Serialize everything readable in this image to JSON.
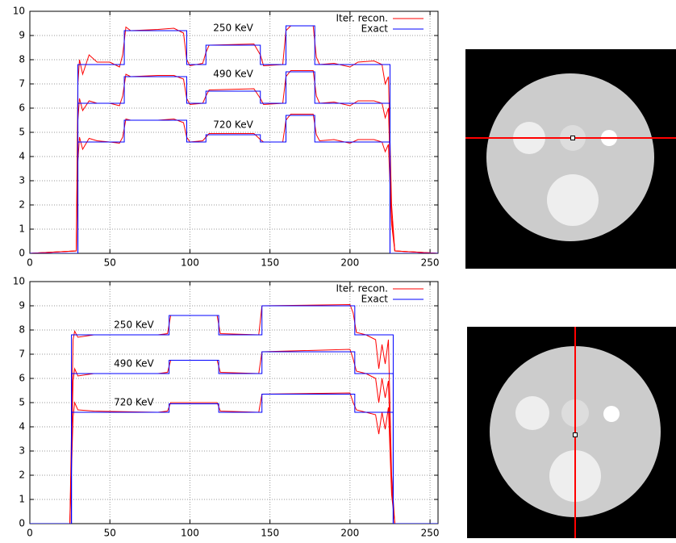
{
  "chart_data": [
    {
      "type": "line",
      "xlim": [
        0,
        255
      ],
      "ylim": [
        0,
        10
      ],
      "xticks": [
        0,
        50,
        100,
        150,
        200,
        250
      ],
      "yticks": [
        0,
        1,
        2,
        3,
        4,
        5,
        6,
        7,
        8,
        9,
        10
      ],
      "grid": true,
      "legend": "top-right",
      "annotations": [
        {
          "text": "250 KeV",
          "x": 127,
          "y": 9.3
        },
        {
          "text": "490 KeV",
          "x": 127,
          "y": 7.4
        },
        {
          "text": "720 KeV",
          "x": 127,
          "y": 5.3
        }
      ],
      "series": [
        {
          "name": "Iter. recon.",
          "color": "#ff0000",
          "lines": [
            {
              "x": [
                0,
                29,
                30,
                31,
                33,
                37,
                42,
                50,
                56,
                58,
                60,
                63,
                80,
                90,
                96,
                98,
                100,
                108,
                110,
                112,
                140,
                144,
                146,
                158,
                160,
                163,
                177,
                179,
                181,
                190,
                200,
                205,
                215,
                220,
                222,
                224,
                226,
                228,
                255
              ],
              "values": [
                0,
                0.1,
                7.0,
                8.0,
                7.4,
                8.2,
                7.9,
                7.9,
                7.7,
                8.2,
                9.35,
                9.2,
                9.25,
                9.3,
                9.1,
                8.0,
                7.75,
                7.85,
                8.3,
                8.6,
                8.65,
                8.2,
                7.75,
                7.8,
                9.2,
                9.4,
                9.4,
                8.1,
                7.8,
                7.85,
                7.7,
                7.9,
                7.95,
                7.8,
                7.0,
                7.3,
                2,
                0.1,
                0
              ]
            },
            {
              "x": [
                0,
                29,
                30,
                31,
                33,
                37,
                42,
                50,
                56,
                58,
                60,
                63,
                80,
                90,
                96,
                98,
                100,
                108,
                110,
                112,
                140,
                144,
                146,
                158,
                160,
                163,
                177,
                179,
                181,
                190,
                200,
                205,
                215,
                220,
                222,
                224,
                226,
                228,
                255
              ],
              "values": [
                0,
                0.1,
                5.5,
                6.4,
                5.9,
                6.3,
                6.2,
                6.2,
                6.1,
                6.5,
                7.4,
                7.3,
                7.35,
                7.35,
                7.2,
                6.4,
                6.15,
                6.2,
                6.5,
                6.75,
                6.8,
                6.4,
                6.15,
                6.2,
                7.3,
                7.55,
                7.55,
                6.5,
                6.2,
                6.25,
                6.1,
                6.3,
                6.3,
                6.2,
                5.6,
                6.0,
                1.5,
                0.1,
                0
              ]
            },
            {
              "x": [
                0,
                29,
                30,
                31,
                33,
                37,
                42,
                50,
                56,
                58,
                60,
                63,
                80,
                90,
                96,
                98,
                100,
                108,
                110,
                112,
                140,
                144,
                146,
                158,
                160,
                163,
                177,
                179,
                181,
                190,
                200,
                205,
                215,
                220,
                222,
                224,
                226,
                228,
                255
              ],
              "values": [
                0,
                0.1,
                3.8,
                4.8,
                4.3,
                4.75,
                4.65,
                4.6,
                4.55,
                4.8,
                5.55,
                5.5,
                5.5,
                5.55,
                5.4,
                4.8,
                4.6,
                4.65,
                4.8,
                4.95,
                4.95,
                4.7,
                4.6,
                4.6,
                5.5,
                5.75,
                5.75,
                4.9,
                4.65,
                4.7,
                4.55,
                4.7,
                4.7,
                4.6,
                4.2,
                4.5,
                1.2,
                0.1,
                0
              ]
            }
          ]
        },
        {
          "name": "Exact",
          "color": "#0000ff",
          "lines": [
            {
              "x": [
                0,
                30,
                30,
                59,
                59,
                98,
                98,
                110,
                110,
                144,
                144,
                160,
                160,
                178,
                178,
                225,
                225,
                255
              ],
              "values": [
                0,
                0,
                7.8,
                7.8,
                9.2,
                9.2,
                7.8,
                7.8,
                8.6,
                8.6,
                7.8,
                7.8,
                9.4,
                9.4,
                7.8,
                7.8,
                0,
                0
              ]
            },
            {
              "x": [
                0,
                30,
                30,
                59,
                59,
                98,
                98,
                110,
                110,
                144,
                144,
                160,
                160,
                178,
                178,
                225,
                225,
                255
              ],
              "values": [
                0,
                0,
                6.2,
                6.2,
                7.3,
                7.3,
                6.2,
                6.2,
                6.7,
                6.7,
                6.2,
                6.2,
                7.5,
                7.5,
                6.2,
                6.2,
                0,
                0
              ]
            },
            {
              "x": [
                0,
                30,
                30,
                59,
                59,
                98,
                98,
                110,
                110,
                144,
                144,
                160,
                160,
                178,
                178,
                225,
                225,
                255
              ],
              "values": [
                0,
                0,
                4.6,
                4.6,
                5.5,
                5.5,
                4.6,
                4.6,
                4.9,
                4.9,
                4.6,
                4.6,
                5.7,
                5.7,
                4.6,
                4.6,
                0,
                0
              ]
            }
          ]
        }
      ]
    },
    {
      "type": "line",
      "xlim": [
        0,
        255
      ],
      "ylim": [
        0,
        10
      ],
      "xticks": [
        0,
        50,
        100,
        150,
        200,
        250
      ],
      "yticks": [
        0,
        1,
        2,
        3,
        4,
        5,
        6,
        7,
        8,
        9,
        10
      ],
      "grid": true,
      "legend": "top-right",
      "annotations": [
        {
          "text": "250 KeV",
          "x": 65,
          "y": 8.2
        },
        {
          "text": "490 KeV",
          "x": 65,
          "y": 6.6
        },
        {
          "text": "720 KeV",
          "x": 65,
          "y": 5.0
        }
      ],
      "series": [
        {
          "name": "Iter. recon.",
          "color": "#ff0000",
          "lines": [
            {
              "x": [
                0,
                25,
                27,
                28,
                30,
                40,
                80,
                86,
                88,
                117,
                119,
                143,
                145,
                200,
                202,
                204,
                210,
                216,
                218,
                220,
                222,
                224,
                226,
                228,
                255
              ],
              "values": [
                0,
                0,
                7.6,
                7.95,
                7.7,
                7.8,
                7.8,
                7.85,
                8.6,
                8.6,
                7.85,
                7.8,
                9.0,
                9.05,
                8.7,
                7.9,
                7.8,
                7.6,
                6.4,
                7.4,
                6.6,
                7.6,
                2,
                0,
                0
              ]
            },
            {
              "x": [
                0,
                25,
                27,
                28,
                30,
                40,
                80,
                86,
                88,
                117,
                119,
                143,
                145,
                200,
                202,
                204,
                210,
                216,
                218,
                220,
                222,
                224,
                226,
                228,
                255
              ],
              "values": [
                0,
                0,
                5.9,
                6.4,
                6.1,
                6.2,
                6.2,
                6.25,
                6.75,
                6.75,
                6.25,
                6.2,
                7.1,
                7.2,
                6.8,
                6.3,
                6.2,
                6.0,
                5.0,
                6.0,
                5.2,
                5.9,
                1.5,
                0,
                0
              ]
            },
            {
              "x": [
                0,
                25,
                27,
                28,
                30,
                40,
                80,
                86,
                88,
                117,
                119,
                143,
                145,
                200,
                202,
                204,
                210,
                216,
                218,
                220,
                222,
                224,
                226,
                228,
                255
              ],
              "values": [
                0,
                0,
                4.4,
                5.0,
                4.7,
                4.65,
                4.6,
                4.65,
                5.0,
                5.0,
                4.65,
                4.6,
                5.35,
                5.4,
                5.0,
                4.7,
                4.6,
                4.5,
                3.7,
                4.6,
                3.9,
                4.8,
                1.2,
                0,
                0
              ]
            }
          ]
        },
        {
          "name": "Exact",
          "color": "#0000ff",
          "lines": [
            {
              "x": [
                0,
                26,
                26,
                87,
                87,
                118,
                118,
                145,
                145,
                203,
                203,
                227,
                227,
                255
              ],
              "values": [
                0,
                0,
                7.8,
                7.8,
                8.6,
                8.6,
                7.8,
                7.8,
                9.0,
                9.0,
                7.8,
                7.8,
                0,
                0
              ]
            },
            {
              "x": [
                0,
                26,
                26,
                87,
                87,
                118,
                118,
                145,
                145,
                203,
                203,
                227,
                227,
                255
              ],
              "values": [
                0,
                0,
                6.2,
                6.2,
                6.75,
                6.75,
                6.2,
                6.2,
                7.1,
                7.1,
                6.2,
                6.2,
                0,
                0
              ]
            },
            {
              "x": [
                0,
                26,
                26,
                87,
                87,
                118,
                118,
                145,
                145,
                203,
                203,
                227,
                227,
                255
              ],
              "values": [
                0,
                0,
                4.6,
                4.6,
                4.95,
                4.95,
                4.6,
                4.6,
                5.35,
                5.35,
                4.6,
                4.6,
                0,
                0
              ]
            }
          ]
        }
      ]
    }
  ]
}
